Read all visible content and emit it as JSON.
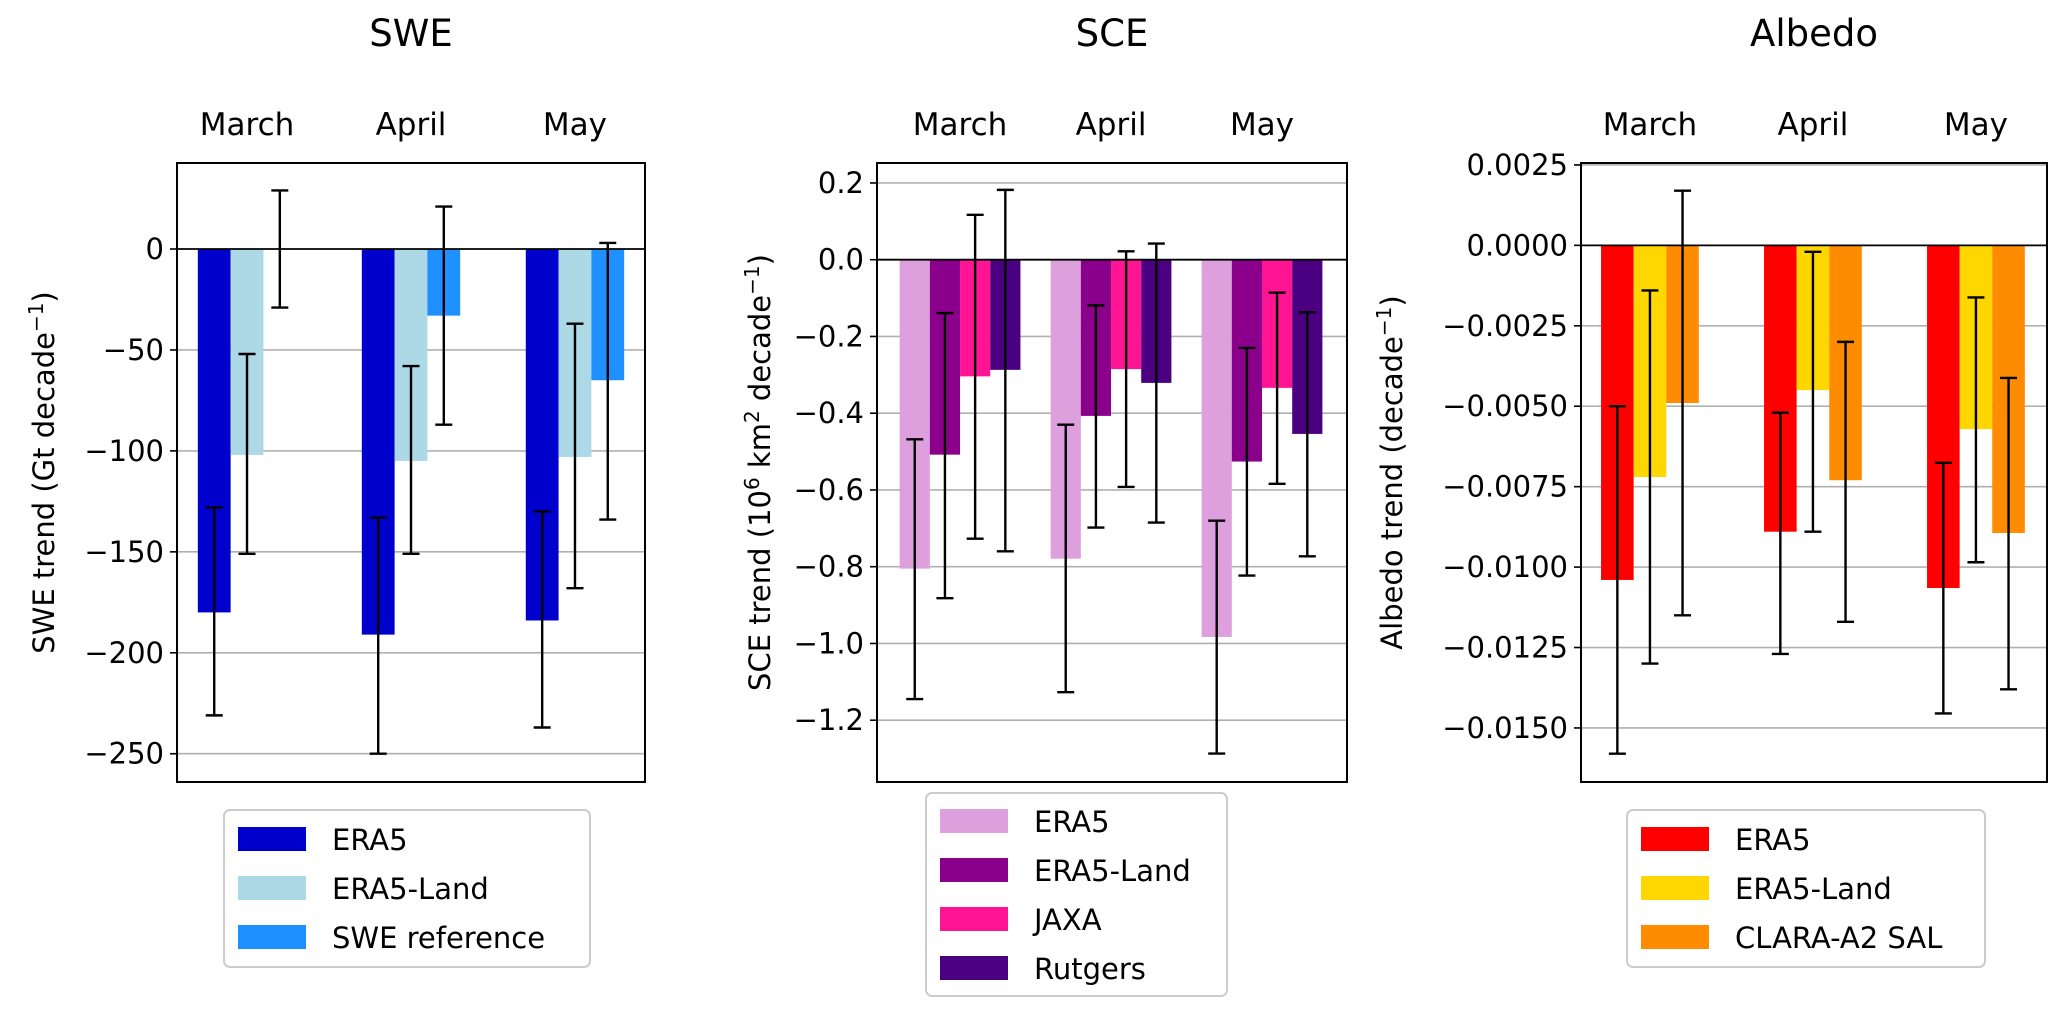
{
  "figure": {
    "panels": [
      "swe",
      "sce",
      "albedo"
    ]
  },
  "chart_data": [
    {
      "id": "swe",
      "type": "bar",
      "title": "SWE",
      "categories": [
        "March",
        "April",
        "May"
      ],
      "xlabel": "",
      "ylabel": "SWE trend (Gt decade",
      "ylabel_sup": "−1",
      "ylabel_suffix": ")",
      "ylim": [
        -264,
        42.6
      ],
      "yticks": [
        0,
        -50,
        -100,
        -150,
        -200,
        -250
      ],
      "ytick_labels": [
        "0",
        "−50",
        "−100",
        "−150",
        "−200",
        "−250"
      ],
      "grid": "y",
      "legend_placement": "below",
      "series": [
        {
          "name": "ERA5",
          "color": "#0000cd",
          "values": [
            -180,
            -191,
            -184
          ],
          "err_low": [
            -231,
            -250,
            -237
          ],
          "err_high": [
            -128,
            -133,
            -130
          ]
        },
        {
          "name": "ERA5-Land",
          "color": "#add8e6",
          "values": [
            -102,
            -105,
            -103
          ],
          "err_low": [
            -151,
            -151,
            -168
          ],
          "err_high": [
            -52,
            -58,
            -37
          ]
        },
        {
          "name": "SWE reference",
          "color": "#1e90ff",
          "values": [
            0,
            -33,
            -65
          ],
          "err_low": [
            -29,
            -87,
            -134
          ],
          "err_high": [
            29,
            21,
            3
          ]
        }
      ]
    },
    {
      "id": "sce",
      "type": "bar",
      "title": "SCE",
      "categories": [
        "March",
        "April",
        "May"
      ],
      "xlabel": "",
      "ylabel": "SCE trend (10",
      "ylabel_sup": "6",
      "ylabel_mid": " km",
      "ylabel_sup2": "2",
      "ylabel_suffix": " decade",
      "ylabel_sup3": "−1",
      "ylabel_end": ")",
      "ylim": [
        -1.361,
        0.252
      ],
      "yticks": [
        0.2,
        0.0,
        -0.2,
        -0.4,
        -0.6,
        -0.8,
        -1.0,
        -1.2
      ],
      "ytick_labels": [
        "0.2",
        "0.0",
        "−0.2",
        "−0.4",
        "−0.6",
        "−0.8",
        "−1.0",
        "−1.2"
      ],
      "grid": "y",
      "legend_placement": "below",
      "series": [
        {
          "name": "ERA5",
          "color": "#dda0dd",
          "values": [
            -0.805,
            -0.779,
            -0.983
          ],
          "err_low": [
            -1.145,
            -1.127,
            -1.287
          ],
          "err_high": [
            -0.468,
            -0.43,
            -0.68
          ]
        },
        {
          "name": "ERA5-Land",
          "color": "#8b008b",
          "values": [
            -0.508,
            -0.407,
            -0.526
          ],
          "err_low": [
            -0.882,
            -0.698,
            -0.823
          ],
          "err_high": [
            -0.139,
            -0.119,
            -0.23
          ]
        },
        {
          "name": "JAXA",
          "color": "#ff1493",
          "values": [
            -0.304,
            -0.285,
            -0.334
          ],
          "err_low": [
            -0.727,
            -0.592,
            -0.584
          ],
          "err_high": [
            0.117,
            0.022,
            -0.086
          ]
        },
        {
          "name": "Rutgers",
          "color": "#4b0082",
          "values": [
            -0.287,
            -0.321,
            -0.454
          ],
          "err_low": [
            -0.76,
            -0.685,
            -0.773
          ],
          "err_high": [
            0.182,
            0.042,
            -0.137
          ]
        }
      ]
    },
    {
      "id": "albedo",
      "type": "bar",
      "title": "Albedo",
      "categories": [
        "March",
        "April",
        "May"
      ],
      "xlabel": "",
      "ylabel": "Albedo trend (decade",
      "ylabel_sup": "−1",
      "ylabel_suffix": ")",
      "ylim": [
        -0.01668,
        0.00256
      ],
      "yticks": [
        0.0025,
        0.0,
        -0.0025,
        -0.005,
        -0.0075,
        -0.01,
        -0.0125,
        -0.015
      ],
      "ytick_labels": [
        "0.0025",
        "0.0000",
        "−0.0025",
        "−0.0050",
        "−0.0075",
        "−0.0100",
        "−0.0125",
        "−0.0150"
      ],
      "grid": "y",
      "legend_placement": "below",
      "series": [
        {
          "name": "ERA5",
          "color": "#ff0000",
          "values": [
            -0.0104,
            -0.0089,
            -0.01065
          ],
          "err_low": [
            -0.0158,
            -0.0127,
            -0.01455
          ],
          "err_high": [
            -0.005,
            -0.0052,
            -0.00676
          ]
        },
        {
          "name": "ERA5-Land",
          "color": "#ffd700",
          "values": [
            -0.0072,
            -0.0045,
            -0.00571
          ],
          "err_low": [
            -0.013,
            -0.0089,
            -0.00985
          ],
          "err_high": [
            -0.0014,
            -0.0002,
            -0.00162
          ]
        },
        {
          "name": "CLARA-A2 SAL",
          "color": "#ff8c00",
          "values": [
            -0.0049,
            -0.0073,
            -0.00894
          ],
          "err_low": [
            -0.0115,
            -0.0117,
            -0.0138
          ],
          "err_high": [
            0.0017,
            -0.003,
            -0.00412
          ]
        }
      ]
    }
  ]
}
